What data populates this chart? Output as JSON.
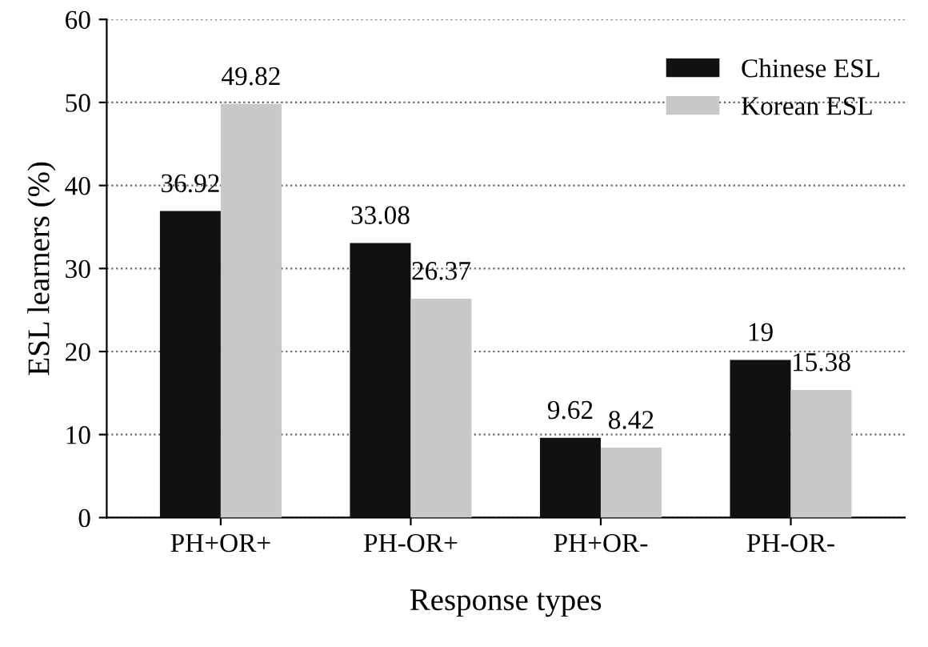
{
  "chart_data": {
    "type": "bar",
    "xlabel": "Response types",
    "ylabel": "ESL learners (%)",
    "categories": [
      "PH+OR+",
      "PH-OR+",
      "PH+OR-",
      "PH-OR-"
    ],
    "series": [
      {
        "name": "Chinese ESL",
        "color": "#111111",
        "values": [
          36.92,
          33.08,
          9.62,
          19
        ]
      },
      {
        "name": "Korean ESL",
        "color": "#c8c8c8",
        "values": [
          49.82,
          26.37,
          8.42,
          15.38
        ]
      }
    ],
    "ylim": [
      0,
      60
    ],
    "yticks": [
      0,
      10,
      20,
      30,
      40,
      50,
      60
    ],
    "grid": "y",
    "legend": "top right",
    "data_labels": true
  }
}
